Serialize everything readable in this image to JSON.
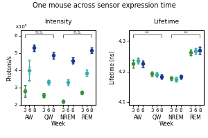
{
  "title": "One mouse across sensor expression time",
  "chart_data": [
    {
      "type": "scatter",
      "title": "Intensity",
      "ylabel": "Photons/s",
      "y_multiplier": "×10⁵",
      "xlabel": "Week",
      "categories": [
        "AW",
        "QW",
        "NREM",
        "REM"
      ],
      "series": [
        {
          "name": "3",
          "color": "#3a943a",
          "values": [
            2.8,
            2.55,
            2.2,
            2.7
          ],
          "errors": [
            0.35,
            0.12,
            0.08,
            0.09
          ],
          "points": [
            [
              2.5,
              2.7,
              2.9,
              3.1
            ],
            [
              2.45,
              2.52,
              2.58,
              2.65
            ],
            [
              2.13,
              2.18,
              2.23,
              2.28
            ],
            [
              2.62,
              2.68,
              2.73,
              2.79
            ]
          ]
        },
        {
          "name": "6",
          "color": "#3aabab",
          "values": [
            4.0,
            3.3,
            3.3,
            3.85
          ],
          "errors": [
            0.55,
            0.14,
            0.18,
            0.18
          ],
          "points": [
            [
              3.4,
              3.8,
              4.2,
              4.6
            ],
            [
              3.18,
              3.25,
              3.35,
              3.42
            ],
            [
              3.15,
              3.25,
              3.35,
              3.45
            ],
            [
              3.68,
              3.8,
              3.9,
              4.02
            ]
          ]
        },
        {
          "name": "8",
          "color": "#1a3a8a",
          "values": [
            5.3,
            4.85,
            4.55,
            5.15
          ],
          "errors": [
            0.18,
            0.18,
            0.18,
            0.15
          ],
          "points": [
            [
              5.1,
              5.2,
              5.35,
              5.45
            ],
            [
              4.68,
              4.8,
              4.9,
              5.02
            ],
            [
              4.38,
              4.5,
              4.6,
              4.72
            ],
            [
              5.01,
              5.1,
              5.2,
              5.29
            ]
          ]
        }
      ],
      "ylim": [
        2.0,
        6.3
      ],
      "yticks": [
        2,
        3,
        4,
        5,
        6
      ],
      "annotations": [
        {
          "text": "n.s.",
          "from": "AW",
          "to": "QW"
        },
        {
          "text": "n.s.",
          "from": "NREM",
          "to": "REM"
        }
      ]
    },
    {
      "type": "scatter",
      "title": "Lifetime",
      "ylabel": "Lifetime (ns)",
      "xlabel": "Week",
      "categories": [
        "AW",
        "QW",
        "NREM",
        "REM"
      ],
      "series": [
        {
          "name": "3",
          "color": "#3a943a",
          "values": [
            4.225,
            4.193,
            4.178,
            4.263
          ],
          "errors": [
            0.012,
            0.007,
            0.006,
            0.009
          ],
          "points": [
            [
              4.213,
              4.221,
              4.229,
              4.237
            ],
            [
              4.186,
              4.191,
              4.196,
              4.2
            ],
            [
              4.172,
              4.176,
              4.181,
              4.184
            ],
            [
              4.254,
              4.261,
              4.267,
              4.272
            ]
          ]
        },
        {
          "name": "6",
          "color": "#3aabab",
          "values": [
            4.235,
            4.19,
            4.173,
            4.268
          ],
          "errors": [
            0.01,
            0.007,
            0.007,
            0.009
          ],
          "points": [
            [
              4.225,
              4.232,
              4.238,
              4.245
            ],
            [
              4.183,
              4.188,
              4.193,
              4.197
            ],
            [
              4.166,
              4.171,
              4.176,
              4.18
            ],
            [
              4.259,
              4.266,
              4.272,
              4.277
            ]
          ]
        },
        {
          "name": "8",
          "color": "#1a3a8a",
          "values": [
            4.225,
            4.183,
            4.182,
            4.27
          ],
          "errors": [
            0.01,
            0.007,
            0.006,
            0.011
          ],
          "points": [
            [
              4.215,
              4.222,
              4.228,
              4.235
            ],
            [
              4.176,
              4.181,
              4.186,
              4.19
            ],
            [
              4.176,
              4.18,
              4.185,
              4.188
            ],
            [
              4.259,
              4.267,
              4.274,
              4.281
            ]
          ]
        }
      ],
      "ylim": [
        4.09,
        4.335
      ],
      "yticks": [
        4.1,
        4.2,
        4.3
      ],
      "annotations": [
        {
          "text": "**",
          "from": "AW",
          "to": "QW"
        },
        {
          "text": "**",
          "from": "NREM",
          "to": "REM"
        }
      ]
    }
  ]
}
